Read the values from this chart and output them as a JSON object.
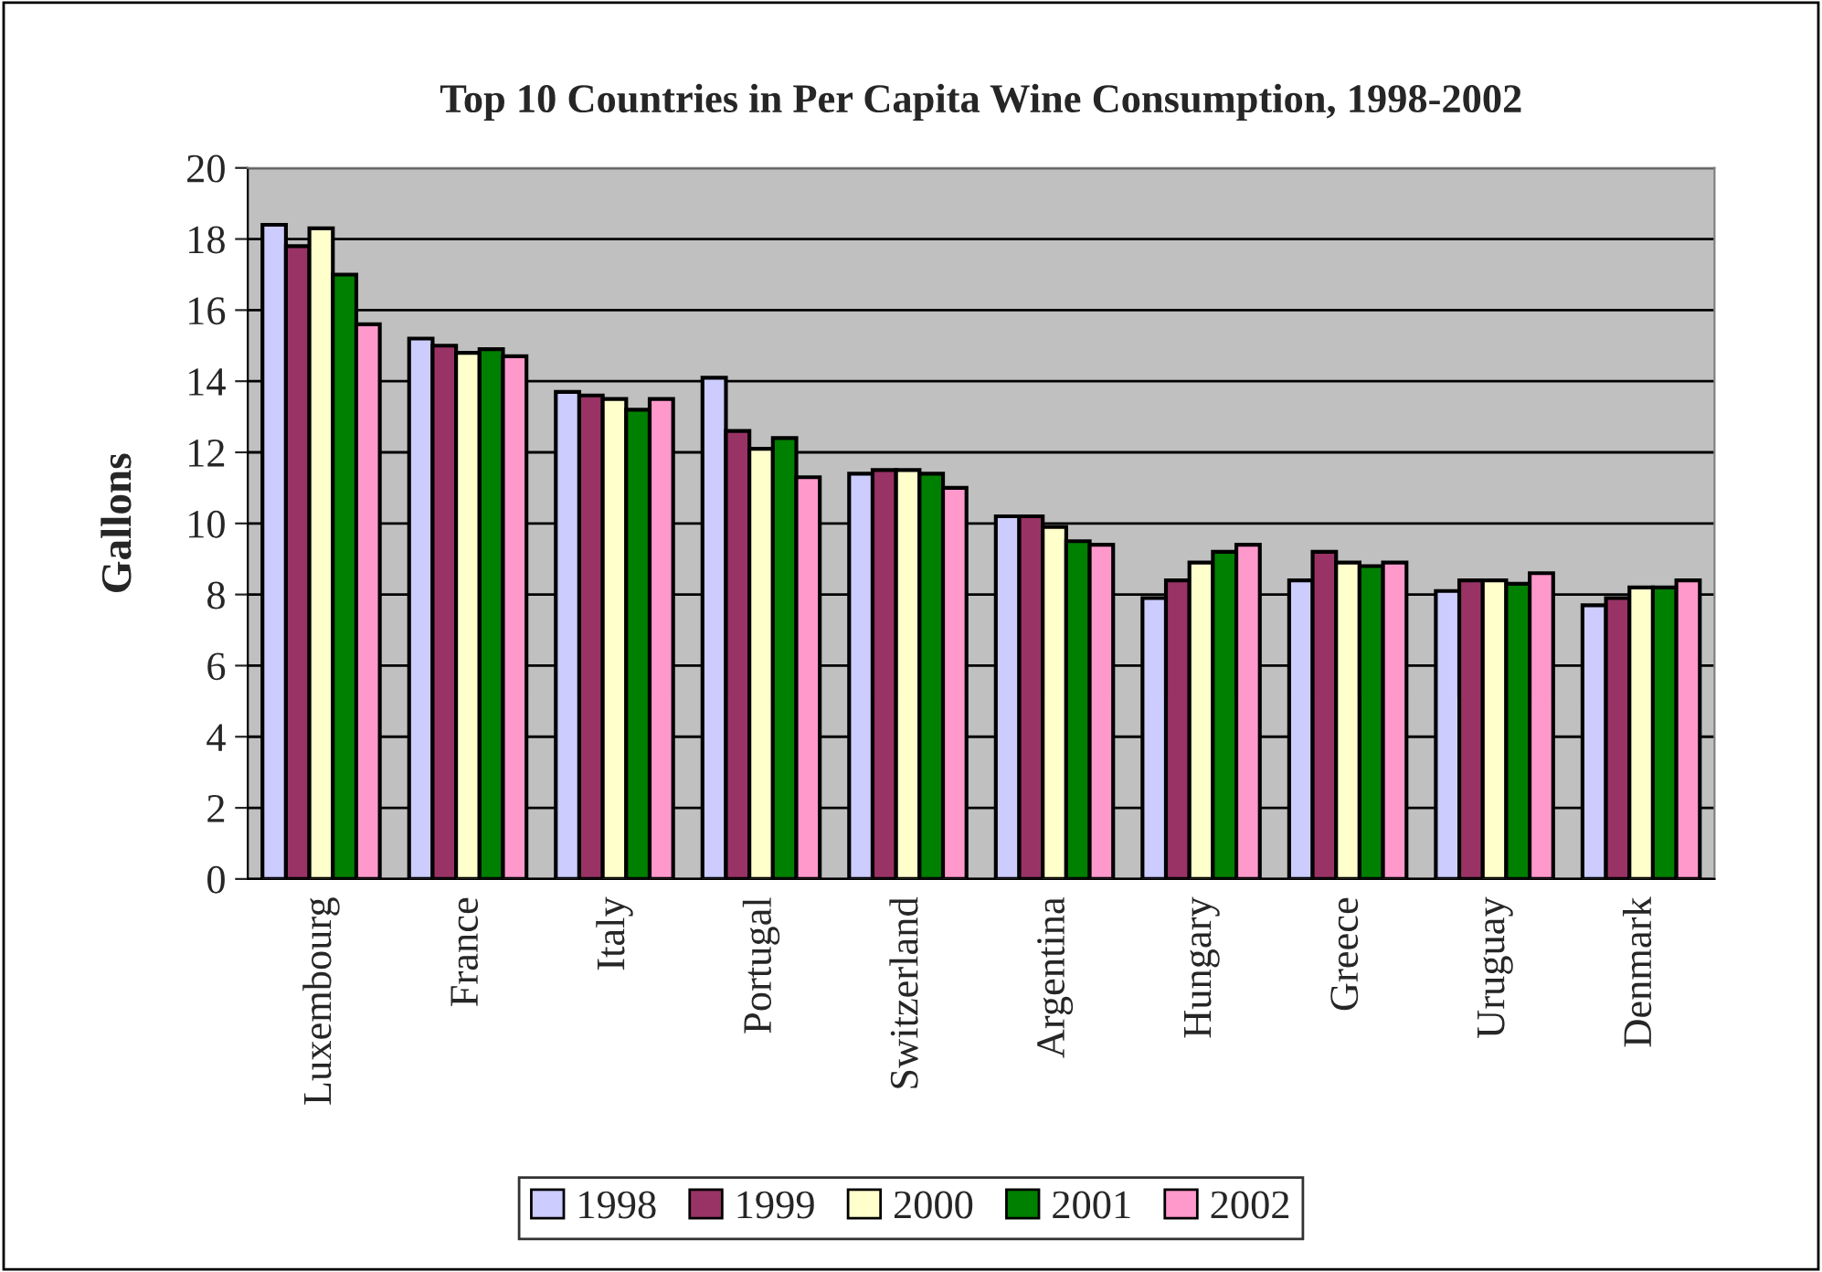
{
  "chart_data": {
    "type": "bar",
    "title": "Top 10 Countries in Per Capita Wine Consumption, 1998-2002",
    "ylabel": "Gallons",
    "categories": [
      "Luxembourg",
      "France",
      "Italy",
      "Portugal",
      "Switzerland",
      "Argentina",
      "Hungary",
      "Greece",
      "Uruguay",
      "Denmark"
    ],
    "series": [
      {
        "name": "1998",
        "color": "#ccccff",
        "values": [
          18.4,
          15.2,
          13.7,
          14.1,
          11.4,
          10.2,
          7.9,
          8.4,
          8.1,
          7.7
        ]
      },
      {
        "name": "1999",
        "color": "#993366",
        "values": [
          17.8,
          15.0,
          13.6,
          12.6,
          11.5,
          10.2,
          8.4,
          9.2,
          8.4,
          7.9
        ]
      },
      {
        "name": "2000",
        "color": "#ffffcc",
        "values": [
          18.3,
          14.8,
          13.5,
          12.1,
          11.5,
          9.9,
          8.9,
          8.9,
          8.4,
          8.2
        ]
      },
      {
        "name": "2001",
        "color": "#008000",
        "values": [
          17.0,
          14.9,
          13.2,
          12.4,
          11.4,
          9.5,
          9.2,
          8.8,
          8.3,
          8.2
        ]
      },
      {
        "name": "2002",
        "color": "#ff99cc",
        "values": [
          15.6,
          14.7,
          13.5,
          11.3,
          11.0,
          9.4,
          9.4,
          8.9,
          8.6,
          8.4
        ]
      }
    ],
    "ylim": [
      0,
      20
    ],
    "yticks": [
      0,
      2,
      4,
      6,
      8,
      10,
      12,
      14,
      16,
      18,
      20
    ],
    "grid": "y",
    "legend": "bottom"
  }
}
